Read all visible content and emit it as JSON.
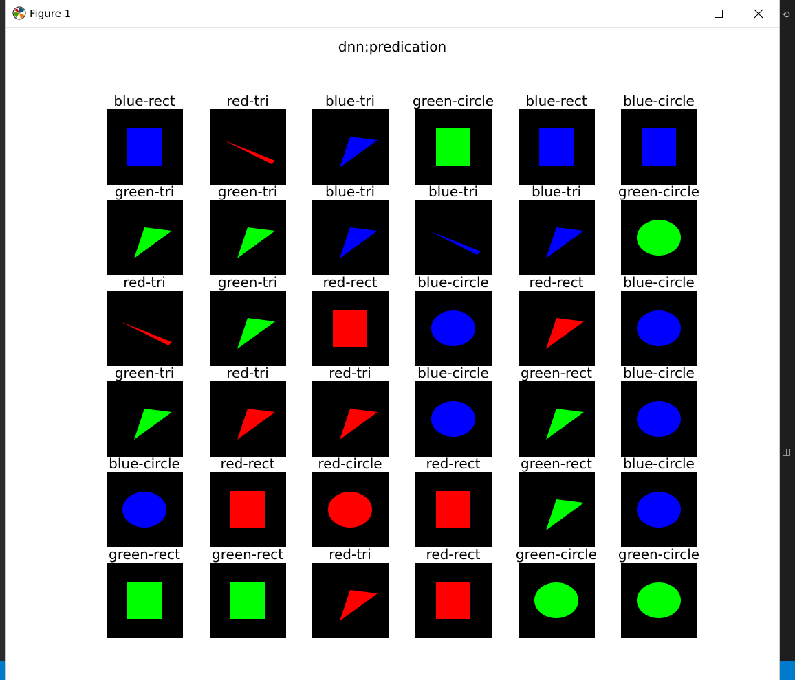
{
  "window": {
    "title": "Figure 1",
    "controls": [
      "minimize",
      "maximize",
      "close"
    ]
  },
  "figure": {
    "suptitle": "dnn:predication",
    "grid": [
      [
        {
          "label": "blue-rect",
          "color": "#0000ff",
          "shape": "rect"
        },
        {
          "label": "red-tri",
          "color": "#ff0000",
          "shape": "sliver"
        },
        {
          "label": "blue-tri",
          "color": "#0000ff",
          "shape": "tri"
        },
        {
          "label": "green-circle",
          "color": "#00ff00",
          "shape": "rect"
        },
        {
          "label": "blue-rect",
          "color": "#0000ff",
          "shape": "rect"
        },
        {
          "label": "blue-circle",
          "color": "#0000ff",
          "shape": "rect"
        }
      ],
      [
        {
          "label": "green-tri",
          "color": "#00ff00",
          "shape": "tri"
        },
        {
          "label": "green-tri",
          "color": "#00ff00",
          "shape": "tri"
        },
        {
          "label": "blue-tri",
          "color": "#0000ff",
          "shape": "tri"
        },
        {
          "label": "blue-tri",
          "color": "#0000ff",
          "shape": "sliver"
        },
        {
          "label": "blue-tri",
          "color": "#0000ff",
          "shape": "tri"
        },
        {
          "label": "green-circle",
          "color": "#00ff00",
          "shape": "ellipse"
        }
      ],
      [
        {
          "label": "red-tri",
          "color": "#ff0000",
          "shape": "sliver"
        },
        {
          "label": "green-tri",
          "color": "#00ff00",
          "shape": "tri"
        },
        {
          "label": "red-rect",
          "color": "#ff0000",
          "shape": "rect"
        },
        {
          "label": "blue-circle",
          "color": "#0000ff",
          "shape": "ellipse"
        },
        {
          "label": "red-rect",
          "color": "#ff0000",
          "shape": "tri"
        },
        {
          "label": "blue-circle",
          "color": "#0000ff",
          "shape": "ellipse"
        }
      ],
      [
        {
          "label": "green-tri",
          "color": "#00ff00",
          "shape": "tri"
        },
        {
          "label": "red-tri",
          "color": "#ff0000",
          "shape": "tri"
        },
        {
          "label": "red-tri",
          "color": "#ff0000",
          "shape": "tri"
        },
        {
          "label": "blue-circle",
          "color": "#0000ff",
          "shape": "ellipse"
        },
        {
          "label": "green-rect",
          "color": "#00ff00",
          "shape": "tri"
        },
        {
          "label": "blue-circle",
          "color": "#0000ff",
          "shape": "ellipse"
        }
      ],
      [
        {
          "label": "blue-circle",
          "color": "#0000ff",
          "shape": "ellipse"
        },
        {
          "label": "red-rect",
          "color": "#ff0000",
          "shape": "rect"
        },
        {
          "label": "red-circle",
          "color": "#ff0000",
          "shape": "ellipse"
        },
        {
          "label": "red-rect",
          "color": "#ff0000",
          "shape": "rect"
        },
        {
          "label": "green-rect",
          "color": "#00ff00",
          "shape": "tri"
        },
        {
          "label": "blue-circle",
          "color": "#0000ff",
          "shape": "ellipse"
        }
      ],
      [
        {
          "label": "green-rect",
          "color": "#00ff00",
          "shape": "rect"
        },
        {
          "label": "green-rect",
          "color": "#00ff00",
          "shape": "rect"
        },
        {
          "label": "red-tri",
          "color": "#ff0000",
          "shape": "tri"
        },
        {
          "label": "red-rect",
          "color": "#ff0000",
          "shape": "rect"
        },
        {
          "label": "green-circle",
          "color": "#00ff00",
          "shape": "ellipse"
        },
        {
          "label": "green-circle",
          "color": "#00ff00",
          "shape": "ellipse"
        }
      ]
    ]
  }
}
